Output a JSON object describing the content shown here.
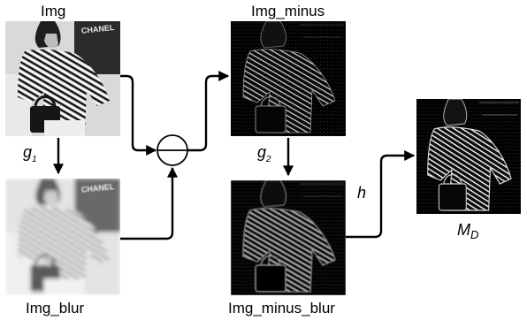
{
  "images": {
    "img": {
      "label": "Img"
    },
    "img_blur": {
      "label": "Img_blur"
    },
    "img_minus": {
      "label": "Img_minus"
    },
    "img_minus_blur": {
      "label": "Img_minus_blur"
    },
    "md": {
      "label": "M",
      "subscript": "D"
    }
  },
  "sign_overlay_text": "CHANEL",
  "operators": {
    "g1": {
      "label": "g",
      "subscript": "1"
    },
    "g2": {
      "label": "g",
      "subscript": "2"
    },
    "h": {
      "label": "h"
    }
  },
  "subtract_node": {
    "symbol": "minus"
  }
}
